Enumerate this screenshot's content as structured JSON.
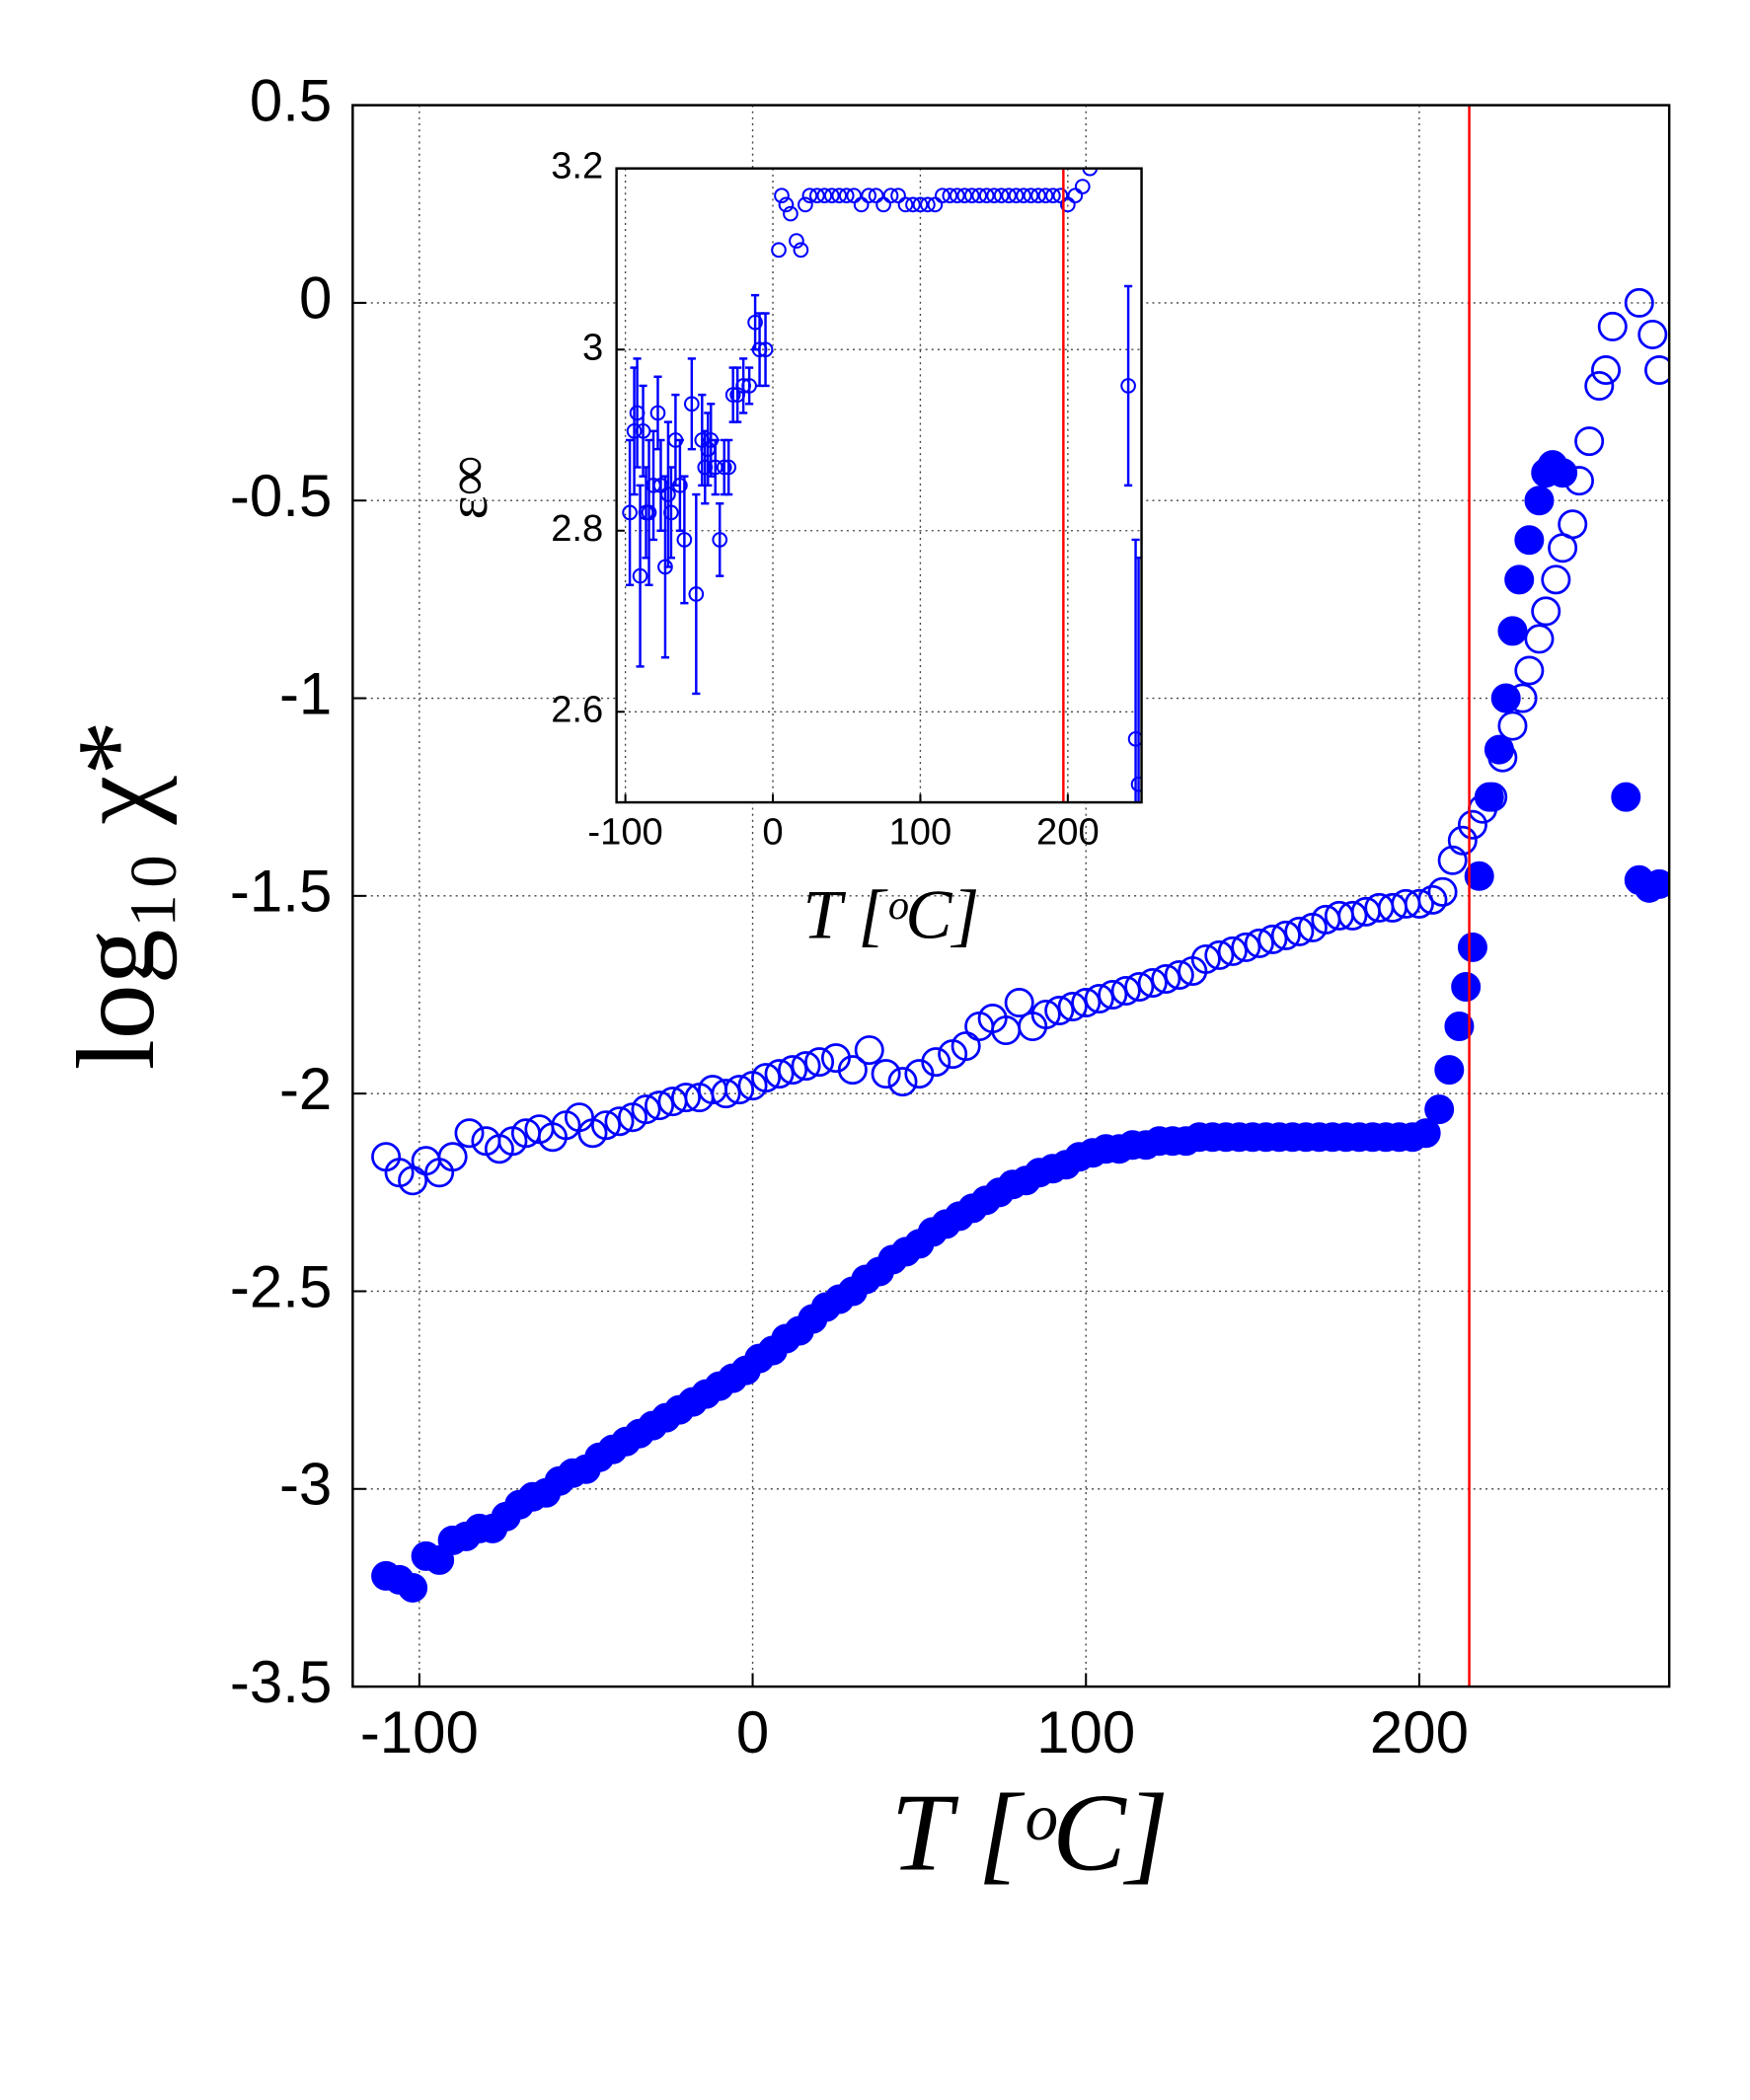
{
  "chart_data": [
    {
      "type": "scatter",
      "xlabel": "T [ᵒC]",
      "ylabel": "log₁₀ χ*",
      "xlim": [
        -120,
        275
      ],
      "ylim": [
        -3.5,
        0.5
      ],
      "xticks": [
        -100,
        0,
        100,
        200
      ],
      "yticks": [
        0.5,
        0,
        -0.5,
        -1,
        -1.5,
        -2,
        -2.5,
        -3,
        -3.5
      ],
      "grid": true,
      "vline": 215,
      "vline_color": "#ff0000",
      "series": [
        {
          "color": "#0000ff",
          "marker": "open",
          "x": [
            -110,
            -106,
            -102,
            -98,
            -94,
            -90,
            -85,
            -80,
            -76,
            -72,
            -68,
            -64,
            -60,
            -56,
            -52,
            -48,
            -44,
            -40,
            -36,
            -32,
            -28,
            -24,
            -20,
            -16,
            -12,
            -8,
            -4,
            0,
            4,
            8,
            12,
            16,
            20,
            25,
            30,
            35,
            40,
            45,
            50,
            55,
            60,
            64,
            68,
            72,
            76,
            80,
            84,
            88,
            92,
            96,
            100,
            104,
            108,
            112,
            116,
            120,
            124,
            128,
            132,
            136,
            140,
            144,
            148,
            152,
            156,
            160,
            164,
            168,
            172,
            176,
            180,
            184,
            188,
            192,
            196,
            200,
            204,
            207,
            210,
            213,
            216,
            219,
            222,
            225,
            228,
            231,
            233,
            236,
            238,
            241,
            243,
            246,
            248,
            251,
            254,
            256,
            258,
            266,
            270,
            272
          ],
          "values": [
            -2.16,
            -2.2,
            -2.22,
            -2.17,
            -2.2,
            -2.16,
            -2.1,
            -2.12,
            -2.14,
            -2.12,
            -2.1,
            -2.09,
            -2.11,
            -2.08,
            -2.06,
            -2.1,
            -2.08,
            -2.07,
            -2.06,
            -2.04,
            -2.03,
            -2.02,
            -2.01,
            -2.01,
            -1.99,
            -2.0,
            -1.99,
            -1.98,
            -1.96,
            -1.95,
            -1.94,
            -1.93,
            -1.92,
            -1.91,
            -1.94,
            -1.89,
            -1.95,
            -1.97,
            -1.95,
            -1.92,
            -1.9,
            -1.88,
            -1.83,
            -1.81,
            -1.84,
            -1.77,
            -1.83,
            -1.8,
            -1.79,
            -1.78,
            -1.77,
            -1.76,
            -1.75,
            -1.74,
            -1.73,
            -1.72,
            -1.71,
            -1.7,
            -1.69,
            -1.66,
            -1.65,
            -1.64,
            -1.63,
            -1.62,
            -1.61,
            -1.6,
            -1.59,
            -1.58,
            -1.56,
            -1.55,
            -1.55,
            -1.54,
            -1.53,
            -1.53,
            -1.52,
            -1.52,
            -1.51,
            -1.49,
            -1.41,
            -1.36,
            -1.32,
            -1.28,
            -1.25,
            -1.15,
            -1.07,
            -1.0,
            -0.93,
            -0.85,
            -0.78,
            -0.7,
            -0.62,
            -0.56,
            -0.45,
            -0.35,
            -0.21,
            -0.17,
            -0.06,
            0,
            -0.08,
            -0.17
          ]
        },
        {
          "color": "#0000ff",
          "marker": "filled",
          "x": [
            -110,
            -106,
            -102,
            -98,
            -94,
            -90,
            -86,
            -82,
            -78,
            -74,
            -70,
            -66,
            -62,
            -58,
            -54,
            -50,
            -46,
            -42,
            -38,
            -34,
            -30,
            -26,
            -22,
            -18,
            -14,
            -10,
            -6,
            -2,
            2,
            6,
            10,
            14,
            18,
            22,
            26,
            30,
            34,
            38,
            42,
            46,
            50,
            54,
            58,
            62,
            66,
            70,
            74,
            78,
            82,
            86,
            90,
            94,
            98,
            102,
            106,
            110,
            114,
            118,
            122,
            126,
            130,
            134,
            138,
            142,
            146,
            150,
            154,
            158,
            162,
            166,
            170,
            174,
            178,
            182,
            186,
            190,
            194,
            198,
            202,
            206,
            209,
            212,
            214,
            216,
            218,
            221,
            224,
            226,
            228,
            230,
            233,
            236,
            238,
            240,
            243,
            262,
            266,
            269,
            272
          ],
          "values": [
            -3.22,
            -3.23,
            -3.25,
            -3.17,
            -3.18,
            -3.13,
            -3.12,
            -3.1,
            -3.1,
            -3.07,
            -3.04,
            -3.02,
            -3.01,
            -2.98,
            -2.96,
            -2.95,
            -2.92,
            -2.9,
            -2.88,
            -2.86,
            -2.84,
            -2.82,
            -2.8,
            -2.78,
            -2.76,
            -2.74,
            -2.72,
            -2.7,
            -2.67,
            -2.65,
            -2.62,
            -2.6,
            -2.57,
            -2.54,
            -2.52,
            -2.5,
            -2.47,
            -2.45,
            -2.42,
            -2.4,
            -2.38,
            -2.35,
            -2.33,
            -2.31,
            -2.29,
            -2.27,
            -2.25,
            -2.23,
            -2.22,
            -2.2,
            -2.19,
            -2.18,
            -2.16,
            -2.15,
            -2.14,
            -2.14,
            -2.13,
            -2.13,
            -2.12,
            -2.12,
            -2.12,
            -2.11,
            -2.11,
            -2.11,
            -2.11,
            -2.11,
            -2.11,
            -2.11,
            -2.11,
            -2.11,
            -2.11,
            -2.11,
            -2.11,
            -2.11,
            -2.11,
            -2.11,
            -2.11,
            -2.11,
            -2.1,
            -2.04,
            -1.94,
            -1.83,
            -1.73,
            -1.63,
            -1.45,
            -1.25,
            -1.13,
            -1.0,
            -0.83,
            -0.7,
            -0.6,
            -0.5,
            -0.43,
            -0.41,
            -0.43,
            -1.25,
            -1.46,
            -1.48,
            -1.47
          ]
        }
      ]
    },
    {
      "type": "errorscatter",
      "xlabel": "T [ᵒC]",
      "ylabel": "ε∞",
      "xlim": [
        -106,
        250
      ],
      "ylim": [
        2.5,
        3.2
      ],
      "xticks": [
        -100,
        0,
        100,
        200
      ],
      "yticks": [
        2.6,
        2.8,
        3,
        3.2
      ],
      "grid": true,
      "vline": 197,
      "vline_color": "#ff0000",
      "series": [
        {
          "color": "#0000ff",
          "marker": "open",
          "x": [
            -97,
            -94,
            -92,
            -90,
            -88,
            -86,
            -84,
            -81,
            -78,
            -76,
            -73,
            -71,
            -69,
            -66,
            -63,
            -60,
            -55,
            -52,
            -48,
            -46,
            -44,
            -42,
            -39,
            -36,
            -33,
            -30,
            -27,
            -24,
            -20,
            -16,
            -12,
            -9,
            -5,
            4,
            6,
            9,
            12,
            16,
            19,
            22,
            25,
            30,
            35,
            40,
            45,
            50,
            55,
            60,
            65,
            70,
            75,
            80,
            85,
            90,
            95,
            100,
            105,
            110,
            115,
            120,
            125,
            130,
            135,
            140,
            145,
            150,
            155,
            160,
            165,
            170,
            175,
            180,
            185,
            190,
            195,
            200,
            205,
            210,
            215,
            241,
            246,
            248
          ],
          "values": [
            2.82,
            2.91,
            2.93,
            2.75,
            2.91,
            2.82,
            2.82,
            2.85,
            2.93,
            2.85,
            2.76,
            2.84,
            2.82,
            2.9,
            2.85,
            2.79,
            2.94,
            2.73,
            2.9,
            2.87,
            2.89,
            2.9,
            2.87,
            2.79,
            2.87,
            2.87,
            2.95,
            2.95,
            2.96,
            2.96,
            3.03,
            3.0,
            3.0,
            3.11,
            3.17,
            3.16,
            3.15,
            3.12,
            3.11,
            3.16,
            3.17,
            3.17,
            3.17,
            3.17,
            3.17,
            3.17,
            3.17,
            3.16,
            3.17,
            3.17,
            3.16,
            3.17,
            3.17,
            3.16,
            3.16,
            3.16,
            3.16,
            3.16,
            3.17,
            3.17,
            3.17,
            3.17,
            3.17,
            3.17,
            3.17,
            3.17,
            3.17,
            3.17,
            3.17,
            3.17,
            3.17,
            3.17,
            3.17,
            3.17,
            3.17,
            3.16,
            3.17,
            3.18,
            3.2,
            2.96,
            2.57,
            2.52
          ],
          "errors": [
            0.08,
            0.07,
            0.06,
            0.1,
            0.05,
            0.05,
            0.08,
            0.06,
            0.04,
            0.05,
            0.1,
            0.08,
            0.05,
            0.05,
            0.05,
            0.07,
            0.05,
            0.11,
            0.05,
            0.04,
            0.04,
            0.04,
            0.03,
            0.04,
            0.03,
            0.03,
            0.03,
            0.03,
            0.03,
            0.02,
            0.03,
            0.04,
            0.04,
            null,
            null,
            null,
            null,
            null,
            null,
            null,
            null,
            null,
            null,
            null,
            null,
            null,
            null,
            null,
            null,
            null,
            null,
            null,
            null,
            null,
            null,
            null,
            null,
            null,
            null,
            null,
            null,
            null,
            null,
            null,
            null,
            null,
            null,
            null,
            null,
            null,
            null,
            null,
            null,
            null,
            null,
            null,
            null,
            null,
            null,
            0.11,
            0.22,
            0.25
          ]
        }
      ]
    }
  ]
}
